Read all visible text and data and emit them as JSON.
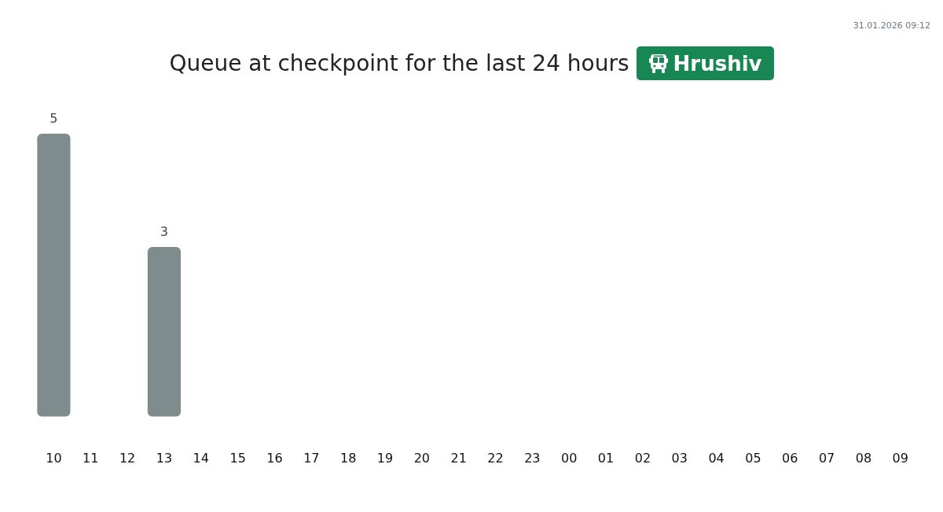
{
  "chart_data": {
    "type": "bar",
    "title": "Queue at checkpoint for the last 24 hours",
    "subtitle": "Hrushiv",
    "annotations": [
      "31.01.2026 09:12"
    ],
    "categories": [
      "10",
      "11",
      "12",
      "13",
      "14",
      "15",
      "16",
      "17",
      "18",
      "19",
      "20",
      "21",
      "22",
      "23",
      "00",
      "01",
      "02",
      "03",
      "04",
      "05",
      "06",
      "07",
      "08",
      "09"
    ],
    "values": [
      5,
      0,
      0,
      3,
      0,
      0,
      0,
      0,
      0,
      0,
      0,
      0,
      0,
      0,
      0,
      0,
      0,
      0,
      0,
      0,
      0,
      0,
      0,
      0
    ],
    "value_labels": [
      "5",
      null,
      null,
      "3",
      null,
      null,
      null,
      null,
      null,
      null,
      null,
      null,
      null,
      null,
      null,
      null,
      null,
      null,
      null,
      null,
      null,
      null,
      null,
      null
    ],
    "color": "#7f8c8d",
    "tick_labels": "x"
  }
}
